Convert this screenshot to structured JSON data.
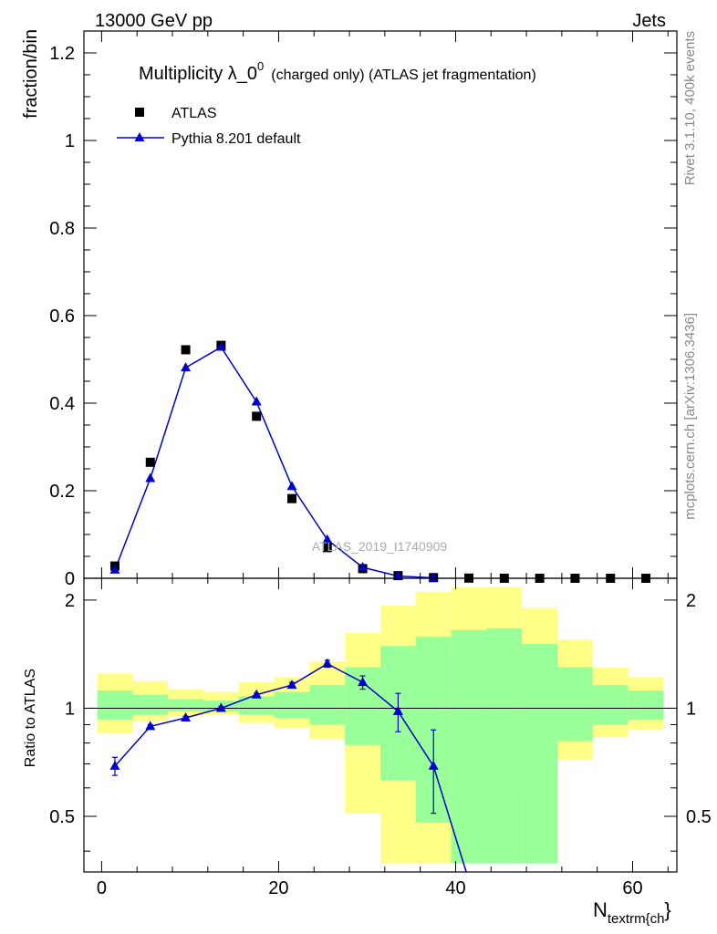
{
  "header": {
    "left": "13000 GeV pp",
    "right": "Jets"
  },
  "side_text": {
    "rivet": "Rivet 3.1.10,  400k events",
    "mcplots": "mcplots.cern.ch [arXiv:1306.3436]"
  },
  "chart_data": [
    {
      "type": "scatter",
      "panel": "main",
      "title_main": "Multiplicity λ_0",
      "title_sup": "0",
      "title_rest": "(charged only) (ATLAS jet fragmentation)",
      "ylabel": "fraction/bin",
      "xlabel_main": "N",
      "xlabel_sub": "textrm{ch",
      "xlabel_end": "}",
      "watermark": "ATLAS_2019_I1740909",
      "xlim": [
        -2,
        65
      ],
      "ylim": [
        0,
        1.25
      ],
      "xticks": [
        0,
        20,
        40,
        60
      ],
      "yticks": [
        0,
        0.2,
        0.4,
        0.6,
        0.8,
        1,
        1.2
      ],
      "ytick_labels": [
        "0",
        "0.2",
        "0.4",
        "0.6",
        "0.8",
        "1",
        "1.2"
      ],
      "legend": {
        "placement": "top-left"
      },
      "series": [
        {
          "name": "ATLAS",
          "style": "square-markers",
          "color": "#000000",
          "x": [
            1.5,
            5.5,
            9.5,
            13.5,
            17.5,
            21.5,
            25.5,
            29.5,
            33.5,
            37.5,
            41.5,
            45.5,
            49.5,
            53.5,
            57.5,
            61.5
          ],
          "y": [
            0.028,
            0.265,
            0.522,
            0.532,
            0.37,
            0.182,
            0.07,
            0.022,
            0.006,
            0.0015,
            0.0004,
            0.0001,
            3e-05,
            1e-05,
            3e-06,
            1e-06
          ]
        },
        {
          "name": "Pythia 8.201 default",
          "style": "line-triangles",
          "color": "#0000cc",
          "x": [
            1.5,
            5.5,
            9.5,
            13.5,
            17.5,
            21.5,
            25.5,
            29.5,
            33.5,
            37.5
          ],
          "y": [
            0.019,
            0.228,
            0.481,
            0.528,
            0.403,
            0.21,
            0.088,
            0.025,
            0.005,
            0.001
          ]
        }
      ]
    },
    {
      "type": "line",
      "panel": "ratio",
      "ylabel": "Ratio to ATLAS",
      "xlim": [
        -2,
        65
      ],
      "ylim": [
        0.35,
        2.3
      ],
      "yticks": [
        0.5,
        1,
        2
      ],
      "ytick_labels": [
        "0.5",
        "1",
        "2"
      ],
      "xticks": [
        0,
        20,
        40,
        60
      ],
      "bands": {
        "bin_edges": [
          -0.5,
          3.5,
          7.5,
          11.5,
          15.5,
          19.5,
          23.5,
          27.5,
          31.5,
          35.5,
          39.5,
          43.5,
          47.5,
          51.5,
          55.5,
          59.5,
          63.5
        ],
        "yellow_low": [
          0.85,
          0.92,
          0.95,
          0.96,
          0.91,
          0.88,
          0.82,
          0.51,
          0.37,
          0.37,
          0.37,
          0.37,
          0.58,
          0.72,
          0.83,
          0.87
        ],
        "yellow_high": [
          1.25,
          1.19,
          1.13,
          1.11,
          1.18,
          1.22,
          1.35,
          1.62,
          1.93,
          2.11,
          2.17,
          2.18,
          1.9,
          1.55,
          1.3,
          1.22
        ],
        "green_low": [
          0.93,
          0.96,
          0.98,
          0.98,
          0.96,
          0.94,
          0.9,
          0.79,
          0.63,
          0.48,
          0.37,
          0.37,
          0.37,
          0.81,
          0.9,
          0.93
        ],
        "green_high": [
          1.12,
          1.09,
          1.06,
          1.05,
          1.08,
          1.11,
          1.16,
          1.3,
          1.49,
          1.58,
          1.65,
          1.67,
          1.51,
          1.3,
          1.16,
          1.12
        ]
      },
      "series": [
        {
          "name": "Pythia 8.201 default",
          "color": "#0000cc",
          "x": [
            1.5,
            5.5,
            9.5,
            13.5,
            17.5,
            21.5,
            25.5,
            29.5,
            33.5,
            37.5,
            41.2
          ],
          "y": [
            0.69,
            0.89,
            0.94,
            1.0,
            1.09,
            1.16,
            1.33,
            1.18,
            0.98,
            0.69,
            0.35
          ],
          "err": [
            0.04,
            0.01,
            0.01,
            0.01,
            0.01,
            0.02,
            0.03,
            0.05,
            0.12,
            0.18,
            0
          ],
          "markers": [
            true,
            true,
            true,
            true,
            true,
            true,
            true,
            true,
            true,
            true,
            false
          ]
        }
      ]
    }
  ]
}
